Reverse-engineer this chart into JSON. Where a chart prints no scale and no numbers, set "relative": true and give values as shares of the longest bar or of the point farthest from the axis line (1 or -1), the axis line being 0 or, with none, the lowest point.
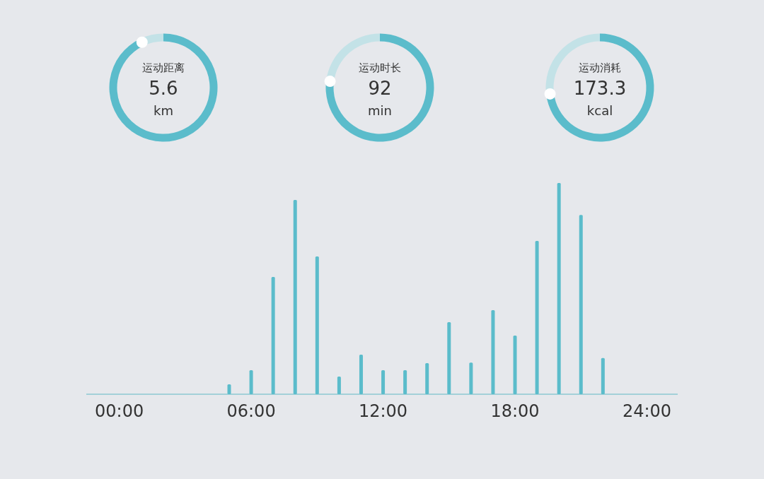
{
  "chart_data": [
    {
      "type": "donut",
      "title": "运动距离",
      "annotations": [
        "5.6",
        "km"
      ],
      "categories": [
        null,
        null
      ],
      "values": [
        93,
        7
      ],
      "colors": [
        "#5bbccb",
        "#c3e2e7"
      ]
    },
    {
      "type": "donut",
      "title": "运动时长",
      "annotations": [
        "92",
        "min"
      ],
      "categories": [
        null,
        null
      ],
      "values": [
        77,
        23
      ],
      "colors": [
        "#5bbccb",
        "#c3e2e7"
      ]
    },
    {
      "type": "donut",
      "title": "运动消耗",
      "annotations": [
        "173.3",
        "kcal"
      ],
      "categories": [
        null,
        null
      ],
      "values": [
        73,
        27
      ],
      "colors": [
        "#5bbccb",
        "#c3e2e7"
      ]
    },
    {
      "type": "bar",
      "relative": true,
      "color": "#5bbccb",
      "x": [
        5,
        6,
        7,
        8,
        9,
        10,
        11,
        12,
        13,
        14,
        15,
        16,
        17,
        18,
        19,
        20,
        21,
        22
      ],
      "values": [
        0.047,
        0.114,
        0.555,
        0.92,
        0.652,
        0.084,
        0.187,
        0.114,
        0.114,
        0.147,
        0.341,
        0.15,
        0.398,
        0.278,
        0.726,
        1,
        0.849,
        0.171
      ],
      "xlim": [
        -1.5,
        25.4
      ],
      "xticks": [
        {
          "value": 0,
          "label": "00:00"
        },
        {
          "value": 6,
          "label": "06:00"
        },
        {
          "value": 12,
          "label": "12:00"
        },
        {
          "value": 18,
          "label": "18:00"
        },
        {
          "value": 24,
          "label": "24:00"
        }
      ]
    }
  ]
}
